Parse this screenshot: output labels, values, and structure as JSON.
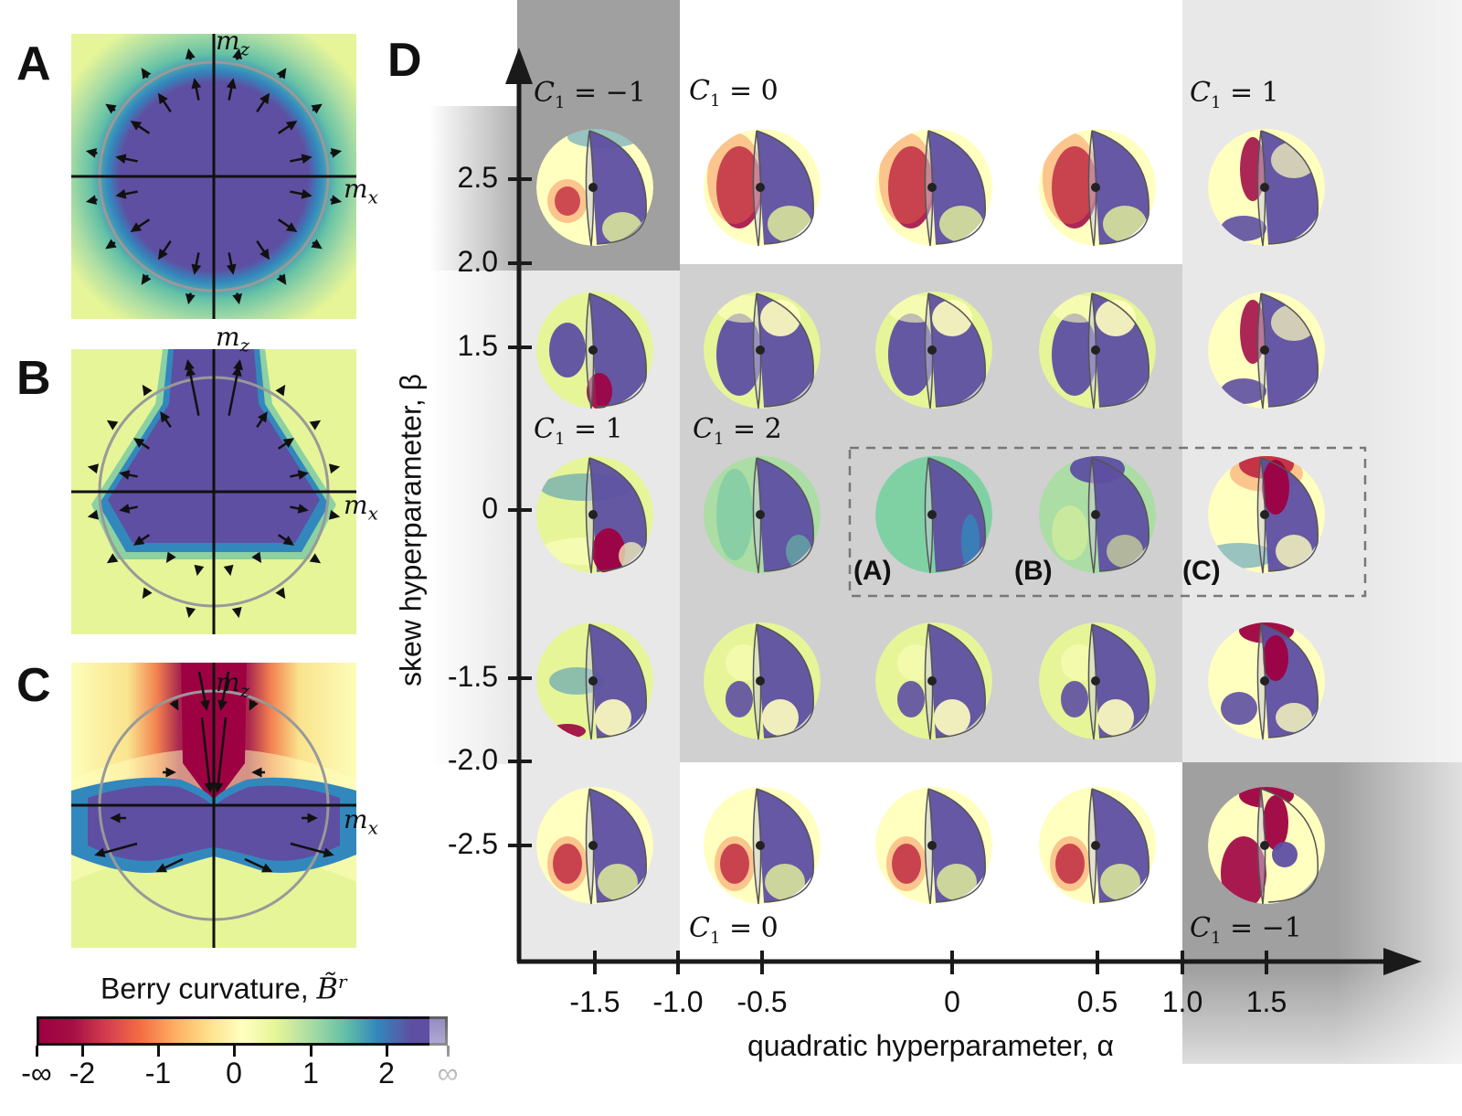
{
  "panels": {
    "A": {
      "letter": "A",
      "x_axis": "m",
      "x_sub": "x",
      "z_axis": "m",
      "z_sub": "z"
    },
    "B": {
      "letter": "B",
      "x_axis": "m",
      "x_sub": "x",
      "z_axis": "m",
      "z_sub": "z"
    },
    "C": {
      "letter": "C",
      "x_axis": "m",
      "x_sub": "x",
      "z_axis": "m",
      "z_sub": "z"
    },
    "D": {
      "letter": "D"
    }
  },
  "colorbar": {
    "title": "Berry curvature, ",
    "symbol": "B̃",
    "superscript": "r",
    "ticks": [
      "-∞",
      "-2",
      "-1",
      "0",
      "1",
      "2",
      "∞"
    ],
    "colors": [
      "#9e0142",
      "#a50f45",
      "#d53e4f",
      "#f46d43",
      "#fdae61",
      "#fee08b",
      "#ffffbf",
      "#e6f598",
      "#abdda4",
      "#66c2a5",
      "#3288bd",
      "#5e4fa2",
      "#5e4fa2"
    ]
  },
  "chart_data": {
    "type": "diagram",
    "title": "",
    "xlabel": "quadratic hyperparameter, α",
    "ylabel": "skew hyperparameter, β",
    "x_ticks": [
      "-1.5",
      "-1.0",
      "-0.5",
      "0",
      "0.5",
      "1.0",
      "1.5"
    ],
    "y_ticks": [
      "2.5",
      "2.0",
      "1.5",
      "0",
      "-1.5",
      "-2.0",
      "-2.5"
    ],
    "alpha_columns": [
      -1.5,
      -0.5,
      0,
      0.5,
      1.5
    ],
    "beta_rows": [
      2.5,
      1.5,
      0,
      -1.5,
      -2.5
    ],
    "regions": [
      {
        "label": "C₁ = −1",
        "alpha_range": [
          -1.5,
          -1.0
        ],
        "beta_range": [
          2.0,
          2.5
        ],
        "shade": "dark"
      },
      {
        "label": "C₁ = 0",
        "alpha_range": [
          -1.0,
          1.0
        ],
        "beta_range": [
          2.0,
          2.5
        ],
        "shade": "white"
      },
      {
        "label": "C₁ = 1",
        "alpha_range": [
          1.0,
          1.5
        ],
        "beta_range": [
          -2.0,
          2.5
        ],
        "shade": "light"
      },
      {
        "label": "C₁ = 1",
        "alpha_range": [
          -1.5,
          -1.0
        ],
        "beta_range": [
          -2.5,
          2.0
        ],
        "shade": "light"
      },
      {
        "label": "C₁ = 2",
        "alpha_range": [
          -1.0,
          1.0
        ],
        "beta_range": [
          -2.0,
          2.0
        ],
        "shade": "mid"
      },
      {
        "label": "C₁ = 0",
        "alpha_range": [
          -1.0,
          1.0
        ],
        "beta_range": [
          -2.5,
          -2.0
        ],
        "shade": "white"
      },
      {
        "label": "C₁ = −1",
        "alpha_range": [
          1.0,
          1.5
        ],
        "beta_range": [
          -2.5,
          -2.0
        ],
        "shade": "dark"
      }
    ],
    "highlighted": [
      {
        "label": "(A)",
        "alpha": 0,
        "beta": 0
      },
      {
        "label": "(B)",
        "alpha": 0.5,
        "beta": 0
      },
      {
        "label": "(C)",
        "alpha": 1.5,
        "beta": 0
      }
    ]
  },
  "region_labels": {
    "top_left": {
      "C": "C",
      "sub": "1",
      "rest": " = −1"
    },
    "top_mid": {
      "C": "C",
      "sub": "1",
      "rest": " = 0"
    },
    "top_right": {
      "C": "C",
      "sub": "1",
      "rest": " = 1"
    },
    "mid_left": {
      "C": "C",
      "sub": "1",
      "rest": " = 1"
    },
    "mid_mid": {
      "C": "C",
      "sub": "1",
      "rest": " = 2"
    },
    "bot_mid": {
      "C": "C",
      "sub": "1",
      "rest": " = 0"
    },
    "bot_right": {
      "C": "C",
      "sub": "1",
      "rest": " = −1"
    }
  },
  "sphere_labels": [
    "(A)",
    "(B)",
    "(C)"
  ]
}
